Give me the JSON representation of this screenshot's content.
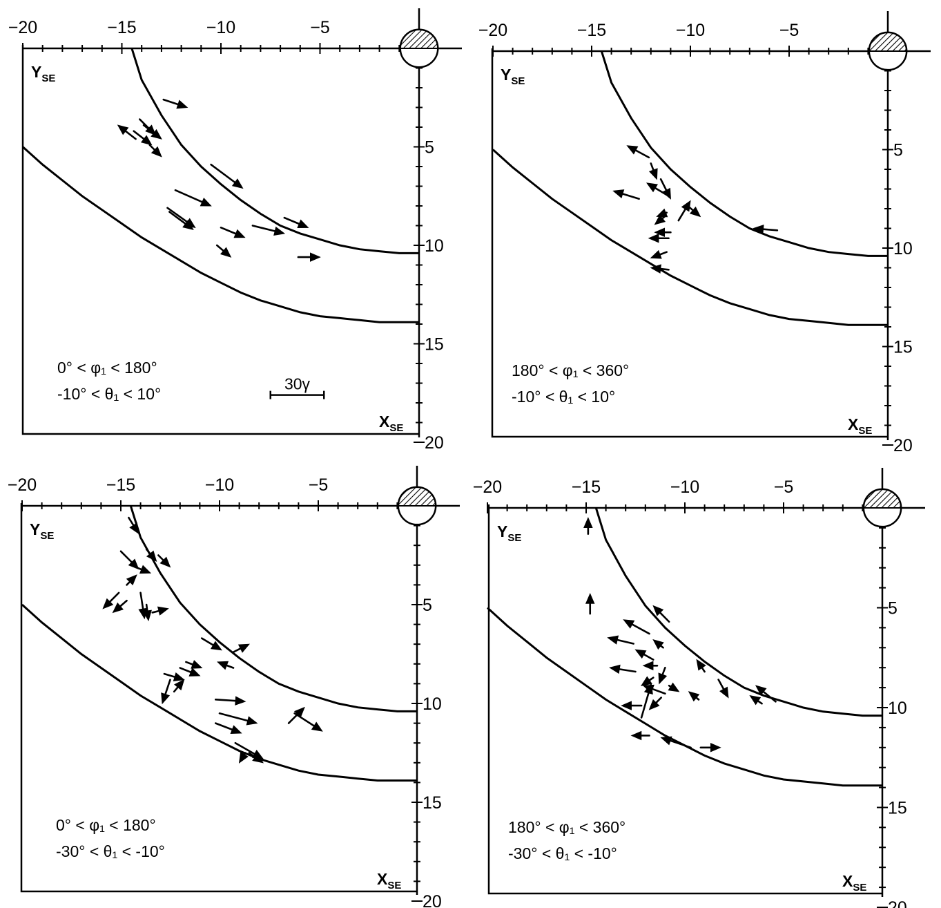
{
  "chart_data": [
    {
      "type": "quiver",
      "x_axis": {
        "ticks": [
          -20,
          -15,
          -10,
          -5
        ],
        "range": [
          -20,
          0
        ]
      },
      "y_axis": {
        "ticks": [
          5,
          10,
          15,
          20
        ],
        "range": [
          0,
          20
        ]
      },
      "y_name": "Y",
      "y_sub": "SE",
      "x_name": "X",
      "x_sub": "SE",
      "conditions": [
        "0° < φ₁ < 180°",
        "-10° < θ₁ < 10°"
      ],
      "scale_label": "30γ",
      "vectors": [
        [
          -12.9,
          2.6,
          1.2,
          0.4
        ],
        [
          -14.1,
          3.6,
          0.8,
          0.8
        ],
        [
          -13.9,
          3.9,
          0.9,
          0.7
        ],
        [
          -14.4,
          4.2,
          0.9,
          0.7
        ],
        [
          -14.3,
          4.6,
          -0.9,
          -0.7
        ],
        [
          -13.6,
          4.9,
          0.6,
          0.6
        ],
        [
          -10.5,
          5.9,
          1.6,
          1.2
        ],
        [
          -12.3,
          7.2,
          1.8,
          0.8
        ],
        [
          -12.7,
          8.1,
          1.4,
          1.0
        ],
        [
          -12.6,
          8.3,
          1.2,
          0.9
        ],
        [
          -10.0,
          9.1,
          1.2,
          0.5
        ],
        [
          -8.4,
          9.0,
          1.6,
          0.4
        ],
        [
          -6.8,
          8.6,
          1.2,
          0.5
        ],
        [
          -10.2,
          10.0,
          0.7,
          0.6
        ],
        [
          -6.1,
          10.6,
          1.1,
          0.0
        ]
      ]
    },
    {
      "type": "quiver",
      "x_axis": {
        "ticks": [
          -20,
          -15,
          -10,
          -5
        ],
        "range": [
          -20,
          0
        ]
      },
      "y_axis": {
        "ticks": [
          5,
          10,
          15,
          20
        ],
        "range": [
          0,
          20
        ]
      },
      "y_name": "Y",
      "y_sub": "SE",
      "x_name": "X",
      "x_sub": "SE",
      "conditions": [
        "180° < φ₁ < 360°",
        "-10° < θ₁ < 10°"
      ],
      "vectors": [
        [
          -12.1,
          5.4,
          -1.1,
          -0.6
        ],
        [
          -12.0,
          5.7,
          0.3,
          0.8
        ],
        [
          -11.5,
          6.5,
          0.5,
          1.0
        ],
        [
          -12.6,
          7.5,
          -1.3,
          -0.4
        ],
        [
          -11.2,
          7.3,
          -1.0,
          -0.6
        ],
        [
          -10.6,
          8.6,
          0.6,
          -1.0
        ],
        [
          -10.2,
          7.8,
          0.7,
          0.6
        ],
        [
          -11.2,
          8.2,
          -0.5,
          0.2
        ],
        [
          -11.3,
          8.4,
          -0.5,
          0.4
        ],
        [
          -11.0,
          9.2,
          -0.8,
          0.0
        ],
        [
          -11.1,
          9.5,
          -1.0,
          0.0
        ],
        [
          -11.2,
          10.2,
          -0.8,
          0.3
        ],
        [
          -11.1,
          11.1,
          -0.9,
          -0.1
        ],
        [
          -5.6,
          9.1,
          -1.2,
          -0.1
        ]
      ]
    },
    {
      "type": "quiver",
      "x_axis": {
        "ticks": [
          -20,
          -15,
          -10,
          -5
        ],
        "range": [
          -20,
          0
        ]
      },
      "y_axis": {
        "ticks": [
          5,
          10,
          15,
          20
        ],
        "range": [
          0,
          20
        ]
      },
      "y_name": "Y",
      "y_sub": "SE",
      "x_name": "X",
      "x_sub": "SE",
      "conditions": [
        "0° < φ₁ < 180°",
        "-30° < θ₁ < -10°"
      ],
      "vectors": [
        [
          -14.6,
          0.6,
          0.5,
          0.8
        ],
        [
          -15.0,
          2.3,
          0.9,
          0.9
        ],
        [
          -13.7,
          2.2,
          0.5,
          0.6
        ],
        [
          -14.5,
          3.0,
          1.0,
          0.4
        ],
        [
          -13.1,
          2.5,
          0.6,
          0.6
        ],
        [
          -14.7,
          4.0,
          0.5,
          -0.5
        ],
        [
          -15.1,
          4.4,
          -0.8,
          0.8
        ],
        [
          -14.7,
          4.8,
          -0.7,
          0.6
        ],
        [
          -14.0,
          4.4,
          0.2,
          1.3
        ],
        [
          -13.7,
          5.0,
          0.1,
          0.8
        ],
        [
          -13.4,
          5.4,
          0.8,
          -0.2
        ],
        [
          -10.9,
          6.7,
          1.0,
          0.6
        ],
        [
          -9.3,
          8.2,
          -0.8,
          -0.3
        ],
        [
          -9.3,
          7.4,
          0.8,
          -0.4
        ],
        [
          -12.0,
          8.2,
          1.0,
          0.4
        ],
        [
          -11.7,
          7.9,
          0.8,
          0.3
        ],
        [
          -12.8,
          8.5,
          1.0,
          0.3
        ],
        [
          -12.5,
          8.8,
          -0.4,
          1.2
        ],
        [
          -12.3,
          9.4,
          0.5,
          -0.6
        ],
        [
          -10.2,
          9.8,
          1.5,
          0.1
        ],
        [
          -10.0,
          10.5,
          1.9,
          0.5
        ],
        [
          -10.2,
          11.0,
          1.3,
          0.5
        ],
        [
          -6.5,
          11.0,
          0.8,
          -0.8
        ],
        [
          -6.2,
          10.5,
          1.4,
          0.9
        ],
        [
          -9.2,
          12.0,
          1.4,
          0.8
        ],
        [
          -8.7,
          12.5,
          -0.3,
          0.5
        ],
        [
          -8.5,
          12.5,
          0.7,
          0.5
        ]
      ]
    },
    {
      "type": "quiver",
      "x_axis": {
        "ticks": [
          -20,
          -15,
          -10,
          -5
        ],
        "range": [
          -20,
          0
        ]
      },
      "y_axis": {
        "ticks": [
          5,
          10,
          15,
          20
        ],
        "range": [
          0,
          20
        ]
      },
      "y_name": "Y",
      "y_sub": "SE",
      "x_name": "X",
      "x_sub": "SE",
      "conditions": [
        "180° < φ₁ < 360°",
        "-30° < θ₁ < -10°"
      ],
      "vectors": [
        [
          -14.9,
          1.3,
          0.0,
          -0.8
        ],
        [
          -14.8,
          5.3,
          0.0,
          -1.0
        ],
        [
          -10.8,
          5.7,
          -0.8,
          -0.8
        ],
        [
          -11.8,
          6.3,
          -1.3,
          -0.7
        ],
        [
          -12.6,
          6.8,
          -1.3,
          -0.3
        ],
        [
          -11.1,
          7.0,
          -0.5,
          -0.4
        ],
        [
          -11.6,
          7.6,
          -0.9,
          -0.5
        ],
        [
          -12.5,
          8.2,
          -1.3,
          -0.2
        ],
        [
          -11.4,
          7.9,
          -0.7,
          0.0
        ],
        [
          -11.6,
          8.5,
          -0.6,
          0.4
        ],
        [
          -11.0,
          8.0,
          -0.3,
          0.8
        ],
        [
          -11.0,
          9.3,
          -1.1,
          -0.4
        ],
        [
          -12.2,
          9.9,
          -1.0,
          0.0
        ],
        [
          -12.2,
          10.5,
          0.5,
          -1.7
        ],
        [
          -11.2,
          9.5,
          -0.6,
          0.6
        ],
        [
          -9.0,
          8.2,
          -0.4,
          -0.6
        ],
        [
          -10.8,
          8.9,
          0.5,
          0.3
        ],
        [
          -9.3,
          9.6,
          -0.5,
          -0.4
        ],
        [
          -8.3,
          8.6,
          0.5,
          0.9
        ],
        [
          -6.1,
          9.8,
          -0.6,
          -0.4
        ],
        [
          -5.4,
          9.7,
          -1.0,
          -0.8
        ],
        [
          -11.8,
          11.4,
          -0.9,
          0.0
        ],
        [
          -9.7,
          12.0,
          -1.5,
          -0.5
        ],
        [
          -9.2,
          12.0,
          1.0,
          0.0
        ]
      ]
    }
  ]
}
